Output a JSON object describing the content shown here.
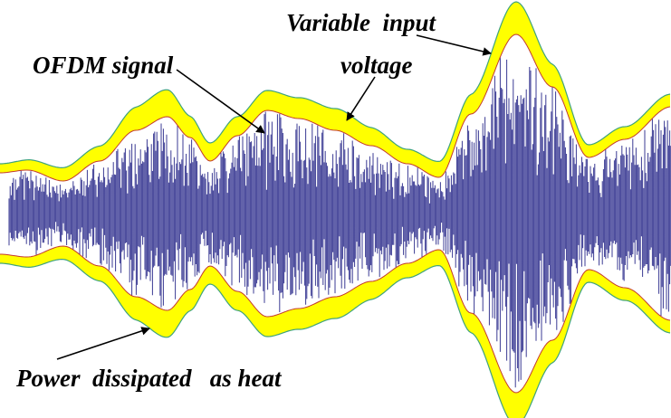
{
  "annotations": {
    "ofdm_signal": "OFDM signal",
    "variable_input": "Variable  input",
    "voltage": "voltage",
    "power_dissipated": "Power  dissipated   as heat"
  },
  "colors": {
    "background": "#ffffff",
    "signal": "#3b3b94",
    "envelope_fill": "#ffff00",
    "envelope_outer_stroke": "#3fa37c",
    "envelope_inner_stroke": "#c23a2e",
    "arrow": "#000000",
    "text": "#000000"
  },
  "legend_icons": [
    "arrow-icon"
  ]
}
